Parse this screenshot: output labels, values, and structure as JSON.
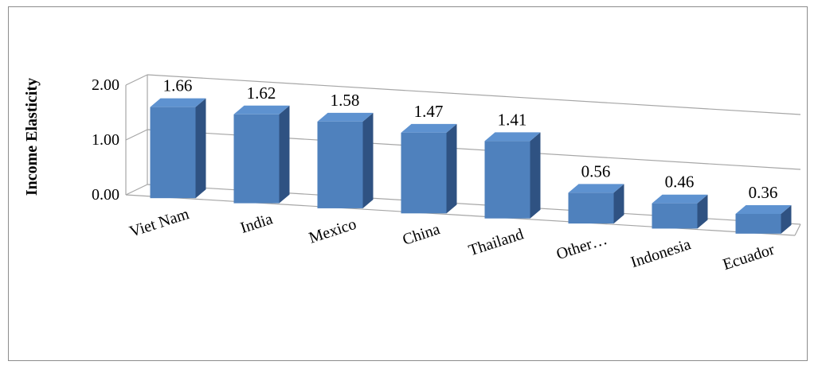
{
  "chart_data": {
    "type": "bar",
    "title": "",
    "xlabel": "",
    "ylabel": "Income Elasticity",
    "categories": [
      "Viet Nam",
      "India",
      "Mexico",
      "China",
      "Thailand",
      "Other…",
      "Indonesia",
      "Ecuador"
    ],
    "values": [
      1.66,
      1.62,
      1.58,
      1.47,
      1.41,
      0.56,
      0.46,
      0.36
    ],
    "value_labels": [
      "1.66",
      "1.62",
      "1.58",
      "1.47",
      "1.41",
      "0.56",
      "0.46",
      "0.36"
    ],
    "ytick_labels": [
      "0.00",
      "1.00",
      "2.00"
    ],
    "yticks": [
      0,
      1,
      2
    ],
    "ylim": [
      0,
      2
    ],
    "grid": true,
    "legend": "none",
    "three_d": true,
    "colors": {
      "bar_front": "#4f81bd",
      "bar_side": "#2f5282",
      "bar_top": "#5e92d0",
      "grid": "#a6a6a6"
    }
  }
}
